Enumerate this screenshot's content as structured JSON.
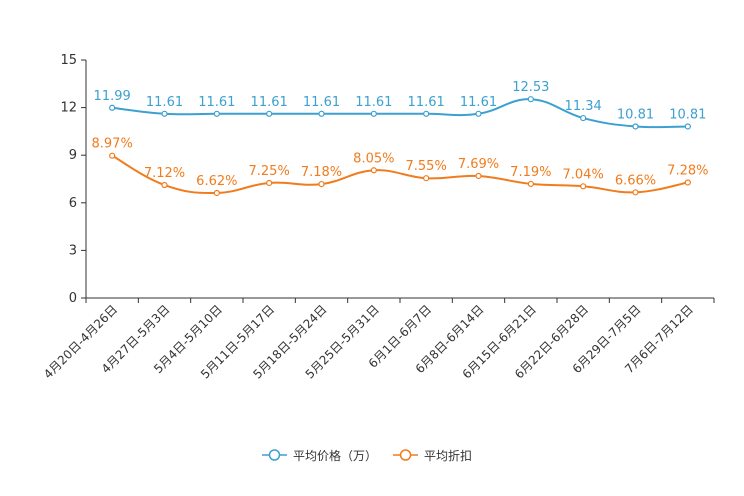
{
  "chart_data": {
    "type": "line",
    "categories": [
      "4月20日-4月26日",
      "4月27日-5月3日",
      "5月4日-5月10日",
      "5月11日-5月17日",
      "5月18日-5月24日",
      "5月25日-5月31日",
      "6月1日-6月7日",
      "6月8日-6月14日",
      "6月15日-6月21日",
      "6月22日-6月28日",
      "6月29日-7月5日",
      "7月6日-7月12日"
    ],
    "ylim": [
      0,
      15
    ],
    "yticks": [
      0,
      3,
      6,
      9,
      12,
      15
    ],
    "grid": false,
    "legend_position": "bottom-center",
    "series": [
      {
        "name": "平均价格（万）",
        "color": "#3ca0d0",
        "values": [
          11.99,
          11.61,
          11.61,
          11.61,
          11.61,
          11.61,
          11.61,
          11.61,
          12.53,
          11.34,
          10.81,
          10.81
        ],
        "labels": [
          "11.99",
          "11.61",
          "11.61",
          "11.61",
          "11.61",
          "11.61",
          "11.61",
          "11.61",
          "12.53",
          "11.34",
          "10.81",
          "10.81"
        ]
      },
      {
        "name": "平均折扣",
        "color": "#f07c1e",
        "values": [
          8.97,
          7.12,
          6.62,
          7.25,
          7.18,
          8.05,
          7.55,
          7.69,
          7.19,
          7.04,
          6.66,
          7.28
        ],
        "labels": [
          "8.97%",
          "7.12%",
          "6.62%",
          "7.25%",
          "7.18%",
          "8.05%",
          "7.55%",
          "7.69%",
          "7.19%",
          "7.04%",
          "6.66%",
          "7.28%"
        ]
      }
    ]
  }
}
